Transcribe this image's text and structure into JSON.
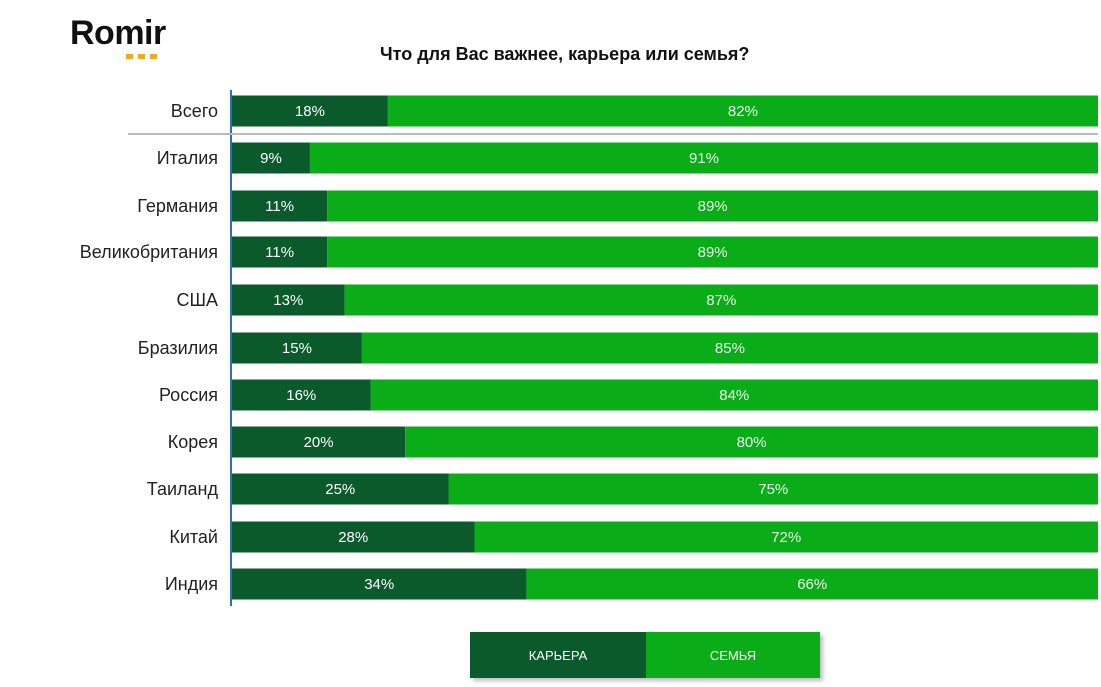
{
  "header": {
    "logo_text": "Romir",
    "title": "Что для Вас важнее, карьера или семья?"
  },
  "colors": {
    "career": "#0b5a2c",
    "family": "#0aac18",
    "career_text": "#ffffff",
    "family_text": "#e8ffe8",
    "axis": "#2f6fb7",
    "separator": "#bbbbbb"
  },
  "legend": {
    "career_label": "КАРЬЕРА",
    "family_label": "СЕМЬЯ"
  },
  "chart_data": {
    "type": "bar",
    "orientation": "horizontal",
    "stacked": true,
    "percent_stacked": true,
    "title": "Что для Вас важнее, карьера или семья?",
    "categories": [
      "Всего",
      "Италия",
      "Германия",
      "Великобритания",
      "США",
      "Бразилия",
      "Россия",
      "Корея",
      "Таиланд",
      "Китай",
      "Индия"
    ],
    "series": [
      {
        "name": "КАРЬЕРА",
        "values": [
          18,
          9,
          11,
          11,
          13,
          15,
          16,
          20,
          25,
          28,
          34
        ],
        "labels": [
          "18%",
          "9%",
          "11%",
          "11%",
          "13%",
          "15%",
          "16%",
          "20%",
          "25%",
          "28%",
          "34%"
        ]
      },
      {
        "name": "СЕМЬЯ",
        "values": [
          82,
          91,
          89,
          89,
          87,
          85,
          84,
          80,
          75,
          72,
          66
        ],
        "labels": [
          "82%",
          "91%",
          "89%",
          "89%",
          "87%",
          "85%",
          "84%",
          "80%",
          "75%",
          "72%",
          "66%"
        ]
      }
    ],
    "xlim": [
      0,
      100
    ],
    "grid": false,
    "legend_position": "bottom"
  }
}
